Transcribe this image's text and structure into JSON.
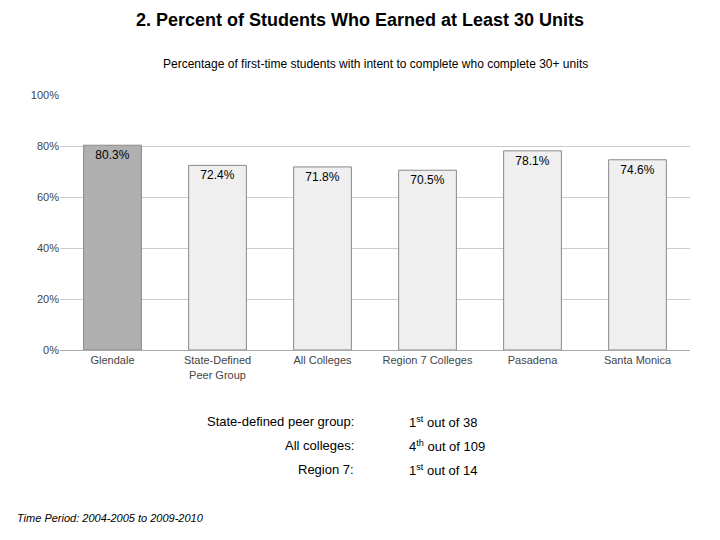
{
  "chart_data": {
    "type": "bar",
    "title": "2. Percent of Students Who Earned at Least 30 Units",
    "subtitle": "Percentage of first-time students with intent to complete who complete 30+ units",
    "categories": [
      "Glendale",
      "State-Defined\nPeer Group",
      "All Colleges",
      "Region 7 Colleges",
      "Pasadena",
      "Santa Monica"
    ],
    "values": [
      80.3,
      72.4,
      71.8,
      70.5,
      78.1,
      74.6
    ],
    "value_labels": [
      "80.3%",
      "72.4%",
      "71.8%",
      "70.5%",
      "78.1%",
      "74.6%"
    ],
    "data_labels": true,
    "colors": [
      "#b0b0b0",
      "#efefef",
      "#efefef",
      "#efefef",
      "#efefef",
      "#efefef"
    ],
    "ylim": [
      0,
      100
    ],
    "yticks": [
      {
        "value": 0,
        "label": "0%"
      },
      {
        "value": 20,
        "label": "20%"
      },
      {
        "value": 40,
        "label": "40%"
      },
      {
        "value": 60,
        "label": "60%"
      },
      {
        "value": 80,
        "label": "80%"
      },
      {
        "value": 100,
        "label": "100%"
      }
    ],
    "grid": true,
    "annotations": [
      {
        "label": "State-defined peer group:",
        "ordinal": "1",
        "superscript": "st",
        "rest": " out of 38"
      },
      {
        "label": "All colleges:",
        "ordinal": "4",
        "superscript": "th",
        "rest": " out of 109"
      },
      {
        "label": "Region 7:",
        "ordinal": "1",
        "superscript": "st",
        "rest": " out of 14"
      }
    ],
    "footer": "Time Period: 2004-2005 to 2009-2010"
  }
}
